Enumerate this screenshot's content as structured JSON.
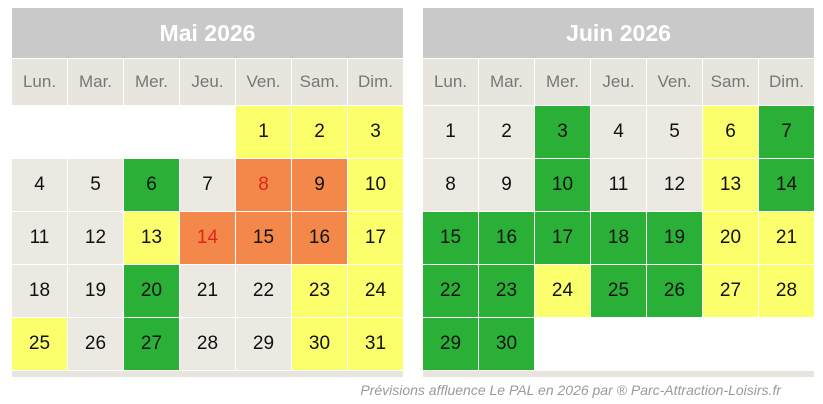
{
  "weekdays": [
    "Lun.",
    "Mar.",
    "Mer.",
    "Jeu.",
    "Ven.",
    "Sam.",
    "Dim."
  ],
  "calendars": [
    {
      "title": "Mai 2026",
      "weeks": [
        [
          {
            "d": "",
            "c": "empty"
          },
          {
            "d": "",
            "c": "empty"
          },
          {
            "d": "",
            "c": "empty"
          },
          {
            "d": "",
            "c": "empty"
          },
          {
            "d": "1",
            "c": "yellow"
          },
          {
            "d": "2",
            "c": "yellow"
          },
          {
            "d": "3",
            "c": "yellow"
          }
        ],
        [
          {
            "d": "4",
            "c": "low"
          },
          {
            "d": "5",
            "c": "low"
          },
          {
            "d": "6",
            "c": "green"
          },
          {
            "d": "7",
            "c": "low"
          },
          {
            "d": "8",
            "c": "orange",
            "red": true
          },
          {
            "d": "9",
            "c": "orange"
          },
          {
            "d": "10",
            "c": "yellow"
          }
        ],
        [
          {
            "d": "11",
            "c": "low"
          },
          {
            "d": "12",
            "c": "low"
          },
          {
            "d": "13",
            "c": "yellow"
          },
          {
            "d": "14",
            "c": "orange",
            "red": true
          },
          {
            "d": "15",
            "c": "orange"
          },
          {
            "d": "16",
            "c": "orange"
          },
          {
            "d": "17",
            "c": "yellow"
          }
        ],
        [
          {
            "d": "18",
            "c": "low"
          },
          {
            "d": "19",
            "c": "low"
          },
          {
            "d": "20",
            "c": "green"
          },
          {
            "d": "21",
            "c": "low"
          },
          {
            "d": "22",
            "c": "low"
          },
          {
            "d": "23",
            "c": "yellow"
          },
          {
            "d": "24",
            "c": "yellow"
          }
        ],
        [
          {
            "d": "25",
            "c": "yellow"
          },
          {
            "d": "26",
            "c": "low"
          },
          {
            "d": "27",
            "c": "green"
          },
          {
            "d": "28",
            "c": "low"
          },
          {
            "d": "29",
            "c": "low"
          },
          {
            "d": "30",
            "c": "yellow"
          },
          {
            "d": "31",
            "c": "yellow"
          }
        ]
      ]
    },
    {
      "title": "Juin 2026",
      "weeks": [
        [
          {
            "d": "1",
            "c": "low"
          },
          {
            "d": "2",
            "c": "low"
          },
          {
            "d": "3",
            "c": "green"
          },
          {
            "d": "4",
            "c": "low"
          },
          {
            "d": "5",
            "c": "low"
          },
          {
            "d": "6",
            "c": "yellow"
          },
          {
            "d": "7",
            "c": "green"
          }
        ],
        [
          {
            "d": "8",
            "c": "low"
          },
          {
            "d": "9",
            "c": "low"
          },
          {
            "d": "10",
            "c": "green"
          },
          {
            "d": "11",
            "c": "low"
          },
          {
            "d": "12",
            "c": "low"
          },
          {
            "d": "13",
            "c": "yellow"
          },
          {
            "d": "14",
            "c": "green"
          }
        ],
        [
          {
            "d": "15",
            "c": "green"
          },
          {
            "d": "16",
            "c": "green"
          },
          {
            "d": "17",
            "c": "green"
          },
          {
            "d": "18",
            "c": "green"
          },
          {
            "d": "19",
            "c": "green"
          },
          {
            "d": "20",
            "c": "yellow"
          },
          {
            "d": "21",
            "c": "yellow"
          }
        ],
        [
          {
            "d": "22",
            "c": "green"
          },
          {
            "d": "23",
            "c": "green"
          },
          {
            "d": "24",
            "c": "yellow"
          },
          {
            "d": "25",
            "c": "green"
          },
          {
            "d": "26",
            "c": "green"
          },
          {
            "d": "27",
            "c": "yellow"
          },
          {
            "d": "28",
            "c": "yellow"
          }
        ],
        [
          {
            "d": "29",
            "c": "green"
          },
          {
            "d": "30",
            "c": "green"
          },
          {
            "d": "",
            "c": "empty"
          },
          {
            "d": "",
            "c": "empty"
          },
          {
            "d": "",
            "c": "empty"
          },
          {
            "d": "",
            "c": "empty"
          },
          {
            "d": "",
            "c": "empty"
          }
        ]
      ]
    }
  ],
  "colors": {
    "low": "#ece9e2",
    "moderate": "#fbff6b",
    "quiet": "#2bb037",
    "busy": "#f4874a",
    "highlight_number": "#e0261a"
  },
  "footer": "Prévisions affluence  Le PAL en 2026 par  ® Parc-Attraction-Loisirs.fr"
}
